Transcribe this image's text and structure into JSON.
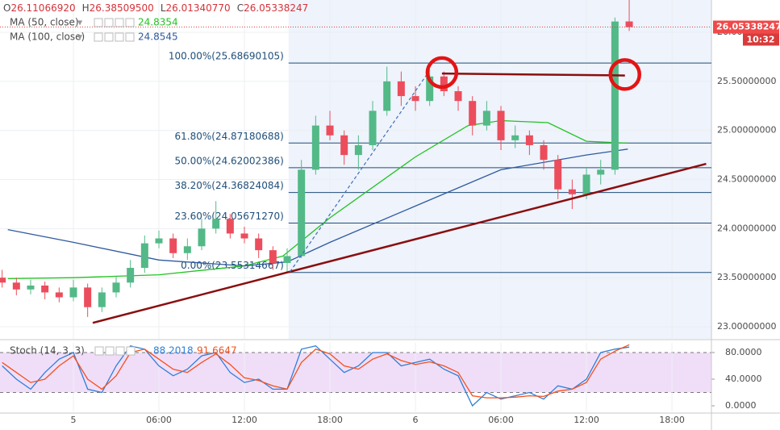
{
  "chart_data": {
    "type": "candlestick",
    "ohlc_header": [
      {
        "key": "O",
        "text": "26.11066920"
      },
      {
        "key": "H",
        "text": "26.38509500"
      },
      {
        "key": "L",
        "text": "26.01340770"
      },
      {
        "key": "C",
        "text": "26.05338247"
      }
    ],
    "x": [
      -5,
      -4,
      -3,
      -2,
      -1,
      0,
      1,
      2,
      3,
      4,
      5,
      6,
      7,
      8,
      9,
      10,
      11,
      12,
      13,
      14,
      15,
      16,
      17,
      18,
      19,
      20,
      21,
      22,
      23,
      24,
      25,
      26,
      27,
      28,
      29,
      30,
      31,
      32,
      33,
      34,
      35,
      36,
      37,
      38,
      39
    ],
    "ohlc": [
      [
        23.5,
        23.58,
        23.4,
        23.45
      ],
      [
        23.45,
        23.5,
        23.32,
        23.38
      ],
      [
        23.38,
        23.48,
        23.33,
        23.42
      ],
      [
        23.42,
        23.46,
        23.28,
        23.35
      ],
      [
        23.35,
        23.4,
        23.25,
        23.3
      ],
      [
        23.3,
        23.48,
        23.26,
        23.4
      ],
      [
        23.4,
        23.44,
        23.1,
        23.2
      ],
      [
        23.2,
        23.4,
        23.15,
        23.35
      ],
      [
        23.35,
        23.52,
        23.3,
        23.45
      ],
      [
        23.45,
        23.68,
        23.4,
        23.6
      ],
      [
        23.6,
        23.93,
        23.55,
        23.85
      ],
      [
        23.85,
        23.98,
        23.8,
        23.9
      ],
      [
        23.9,
        23.95,
        23.7,
        23.75
      ],
      [
        23.75,
        23.9,
        23.68,
        23.82
      ],
      [
        23.82,
        24.1,
        23.78,
        24.0
      ],
      [
        24.0,
        24.28,
        23.95,
        24.1
      ],
      [
        24.1,
        24.15,
        23.9,
        23.95
      ],
      [
        23.95,
        24.02,
        23.85,
        23.9
      ],
      [
        23.9,
        23.95,
        23.7,
        23.78
      ],
      [
        23.78,
        23.82,
        23.58,
        23.65
      ],
      [
        23.65,
        23.8,
        23.55,
        23.72
      ],
      [
        23.72,
        24.7,
        23.7,
        24.6
      ],
      [
        24.6,
        25.15,
        24.55,
        25.05
      ],
      [
        25.05,
        25.2,
        24.9,
        24.95
      ],
      [
        24.95,
        25.0,
        24.65,
        24.75
      ],
      [
        24.75,
        24.95,
        24.6,
        24.85
      ],
      [
        24.85,
        25.3,
        24.8,
        25.2
      ],
      [
        25.2,
        25.65,
        25.15,
        25.5
      ],
      [
        25.5,
        25.6,
        25.25,
        25.35
      ],
      [
        25.35,
        25.45,
        25.2,
        25.3
      ],
      [
        25.3,
        25.62,
        25.25,
        25.55
      ],
      [
        25.55,
        25.6,
        25.35,
        25.4
      ],
      [
        25.4,
        25.45,
        25.2,
        25.3
      ],
      [
        25.3,
        25.35,
        24.95,
        25.05
      ],
      [
        25.05,
        25.3,
        25.0,
        25.2
      ],
      [
        25.2,
        25.25,
        24.8,
        24.9
      ],
      [
        24.9,
        25.05,
        24.82,
        24.95
      ],
      [
        24.95,
        25.0,
        24.75,
        24.85
      ],
      [
        24.85,
        24.9,
        24.6,
        24.7
      ],
      [
        24.7,
        24.75,
        24.3,
        24.4
      ],
      [
        24.4,
        24.5,
        24.2,
        24.35
      ],
      [
        24.35,
        24.62,
        24.3,
        24.55
      ],
      [
        24.55,
        24.7,
        24.45,
        24.6
      ],
      [
        24.6,
        26.15,
        24.55,
        26.11
      ],
      [
        26.1106692,
        26.385095,
        26.0134077,
        26.05338247
      ]
    ],
    "up_color": "#53b987",
    "down_color": "#eb4d5c",
    "series": [
      {
        "name": "MA (50, close)",
        "value_text": "24.8354",
        "color": "#21c321",
        "x": [
          -4.6,
          0,
          6,
          12,
          14.7,
          18,
          24,
          27.7,
          30,
          33.3,
          36,
          38.9
        ],
        "values": [
          23.49,
          23.5,
          23.53,
          23.62,
          23.72,
          24.11,
          24.73,
          25.05,
          25.1,
          25.08,
          24.89,
          24.87
        ]
      },
      {
        "name": "MA (100, close)",
        "value_text": "24.8545",
        "color": "#2f5a9e",
        "x": [
          -4.6,
          0,
          6,
          12,
          15,
          18,
          24,
          30,
          36,
          38.9
        ],
        "values": [
          23.99,
          23.86,
          23.68,
          23.62,
          23.66,
          23.86,
          24.23,
          24.6,
          24.75,
          24.81
        ]
      }
    ],
    "fib": {
      "start_x": 15.1,
      "color": "#1f4e79",
      "levels": [
        {
          "label": "100.00%(25.68690105)",
          "value": 25.68690105
        },
        {
          "label": "61.80%(24.87180688)",
          "value": 24.87180688
        },
        {
          "label": "50.00%(24.62002386)",
          "value": 24.62002386
        },
        {
          "label": "38.20%(24.36824084)",
          "value": 24.36824084
        },
        {
          "label": "23.60%(24.05671270)",
          "value": 24.0567127
        },
        {
          "label": "0.00%(23.55314667)",
          "value": 23.55314667
        }
      ]
    },
    "trendlines": [
      [
        1.36,
        23.04,
        44.4,
        24.66
      ],
      [
        25.86,
        25.58,
        38.7,
        25.56
      ]
    ],
    "dashed_line": [
      15.2,
      23.56,
      24.85,
      25.58
    ],
    "circles": [
      [
        25.86,
        25.59
      ],
      [
        38.7,
        25.57
      ]
    ],
    "last_price": 26.05338247,
    "last_price_label": "26.05338247",
    "countdown": "10:32",
    "xlim": [
      -5.15,
      44.77
    ],
    "xticks": [
      {
        "value": 0,
        "label": "5"
      },
      {
        "value": 6,
        "label": "06:00"
      },
      {
        "value": 12,
        "label": "12:00"
      },
      {
        "value": 18,
        "label": "18:00"
      },
      {
        "value": 24,
        "label": "6"
      },
      {
        "value": 30,
        "label": "06:00"
      },
      {
        "value": 36,
        "label": "12:00"
      },
      {
        "value": 42,
        "label": "18:00"
      }
    ],
    "ylim": [
      22.877,
      26.329
    ],
    "yticks": [
      {
        "value": 26,
        "label": "26.00000000"
      },
      {
        "value": 25.5,
        "label": "25.50000000"
      },
      {
        "value": 25,
        "label": "25.00000000"
      },
      {
        "value": 24.5,
        "label": "24.50000000"
      },
      {
        "value": 24,
        "label": "24.00000000"
      },
      {
        "value": 23.5,
        "label": "23.50000000"
      },
      {
        "value": 23,
        "label": "23.00000000"
      }
    ],
    "grid": true,
    "stoch": {
      "name": "Stoch (14, 3, 3)",
      "k_text": "88.2018",
      "d_text": "91.6647",
      "k_color": "#2f7fd8",
      "d_color": "#f4511e",
      "band": [
        20,
        80
      ],
      "band_color": "#e6c8f5",
      "ylim": [
        -8.5,
        94.5
      ],
      "yticks": [
        {
          "value": 80,
          "label": "80.0000"
        },
        {
          "value": 40,
          "label": "40.0000"
        },
        {
          "value": 0,
          "label": "0.0000"
        }
      ],
      "k": [
        60,
        40,
        25,
        50,
        70,
        80,
        25,
        20,
        60,
        90,
        85,
        60,
        45,
        55,
        75,
        80,
        50,
        35,
        40,
        25,
        25,
        85,
        90,
        70,
        50,
        60,
        80,
        80,
        60,
        65,
        70,
        55,
        45,
        0,
        20,
        10,
        15,
        20,
        10,
        30,
        25,
        40,
        80,
        85,
        88.2018
      ],
      "d": [
        65,
        50,
        35,
        40,
        60,
        75,
        40,
        25,
        45,
        80,
        85,
        70,
        55,
        50,
        65,
        78,
        62,
        42,
        38,
        30,
        25,
        65,
        85,
        78,
        60,
        55,
        70,
        78,
        68,
        62,
        66,
        60,
        50,
        15,
        12,
        12,
        13,
        15,
        14,
        22,
        25,
        35,
        70,
        82,
        91.6647
      ]
    }
  }
}
